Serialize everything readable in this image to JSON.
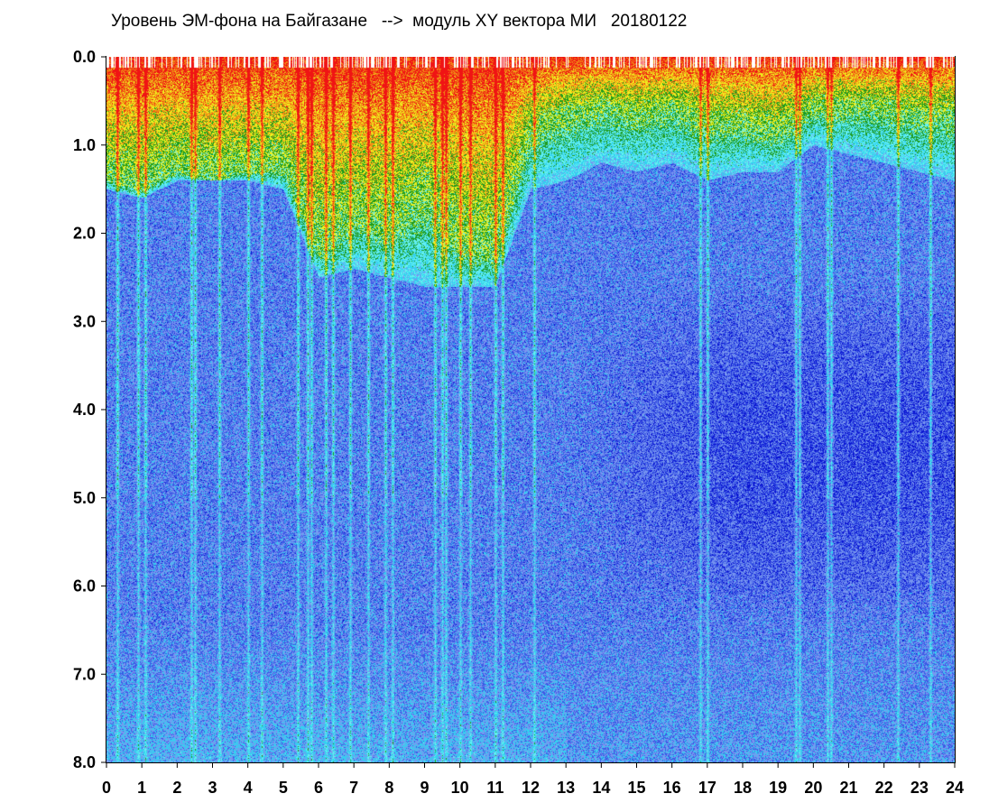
{
  "chart_data": {
    "type": "heatmap",
    "title": "Уровень ЭМ-фона на Байгазане   -->  модуль XY вектора МИ   20180122",
    "xlabel": "",
    "ylabel": "",
    "x_ticks": [
      "0",
      "1",
      "2",
      "3",
      "4",
      "5",
      "6",
      "7",
      "8",
      "9",
      "10",
      "11",
      "12",
      "13",
      "14",
      "15",
      "16",
      "17",
      "18",
      "19",
      "20",
      "21",
      "22",
      "23",
      "24"
    ],
    "y_ticks": [
      "0.0",
      "1.0",
      "2.0",
      "3.0",
      "4.0",
      "5.0",
      "6.0",
      "7.0",
      "8.0"
    ],
    "xlim": [
      0,
      24
    ],
    "ylim": [
      0,
      8
    ],
    "y_inverted": true,
    "grid": false,
    "colorscale": [
      "#0a14d2",
      "#3c5ae6",
      "#7896f0",
      "#32d2f0",
      "#64f0f0",
      "#1e9b1e",
      "#f0f01e",
      "#f08c14",
      "#f01414"
    ],
    "colorscale_labels": [
      "deep-blue",
      "blue",
      "light-blue",
      "cyan",
      "light-cyan",
      "green",
      "yellow",
      "orange",
      "red"
    ],
    "intensity_profile": {
      "hours": [
        0,
        1,
        2,
        3,
        4,
        5,
        6,
        7,
        8,
        9,
        10,
        11,
        12,
        13,
        14,
        15,
        16,
        17,
        18,
        19,
        20,
        21,
        22,
        23,
        24
      ],
      "active_band_depth": [
        1.4,
        1.5,
        1.3,
        1.4,
        1.3,
        1.3,
        2.2,
        1.9,
        2.0,
        1.7,
        2.2,
        2.3,
        0.9,
        0.7,
        0.6,
        0.7,
        0.6,
        0.8,
        0.8,
        0.9,
        0.6,
        0.6,
        0.6,
        0.7,
        0.7
      ],
      "cyan_band_depth": [
        1.5,
        1.6,
        1.4,
        1.4,
        1.4,
        1.5,
        2.5,
        2.4,
        2.5,
        2.6,
        2.6,
        2.6,
        1.5,
        1.4,
        1.2,
        1.3,
        1.2,
        1.4,
        1.3,
        1.3,
        1.0,
        1.1,
        1.2,
        1.3,
        1.4
      ]
    },
    "vertical_streak_hours": [
      0.3,
      0.9,
      1.1,
      2.4,
      2.5,
      3.2,
      4.0,
      4.4,
      5.4,
      5.7,
      5.8,
      6.2,
      6.4,
      6.9,
      7.4,
      7.9,
      8.1,
      9.3,
      9.5,
      9.6,
      10.0,
      10.3,
      11.0,
      11.2,
      12.1,
      16.8,
      17.0,
      19.5,
      19.6,
      20.4,
      20.5,
      22.4,
      23.3
    ]
  }
}
